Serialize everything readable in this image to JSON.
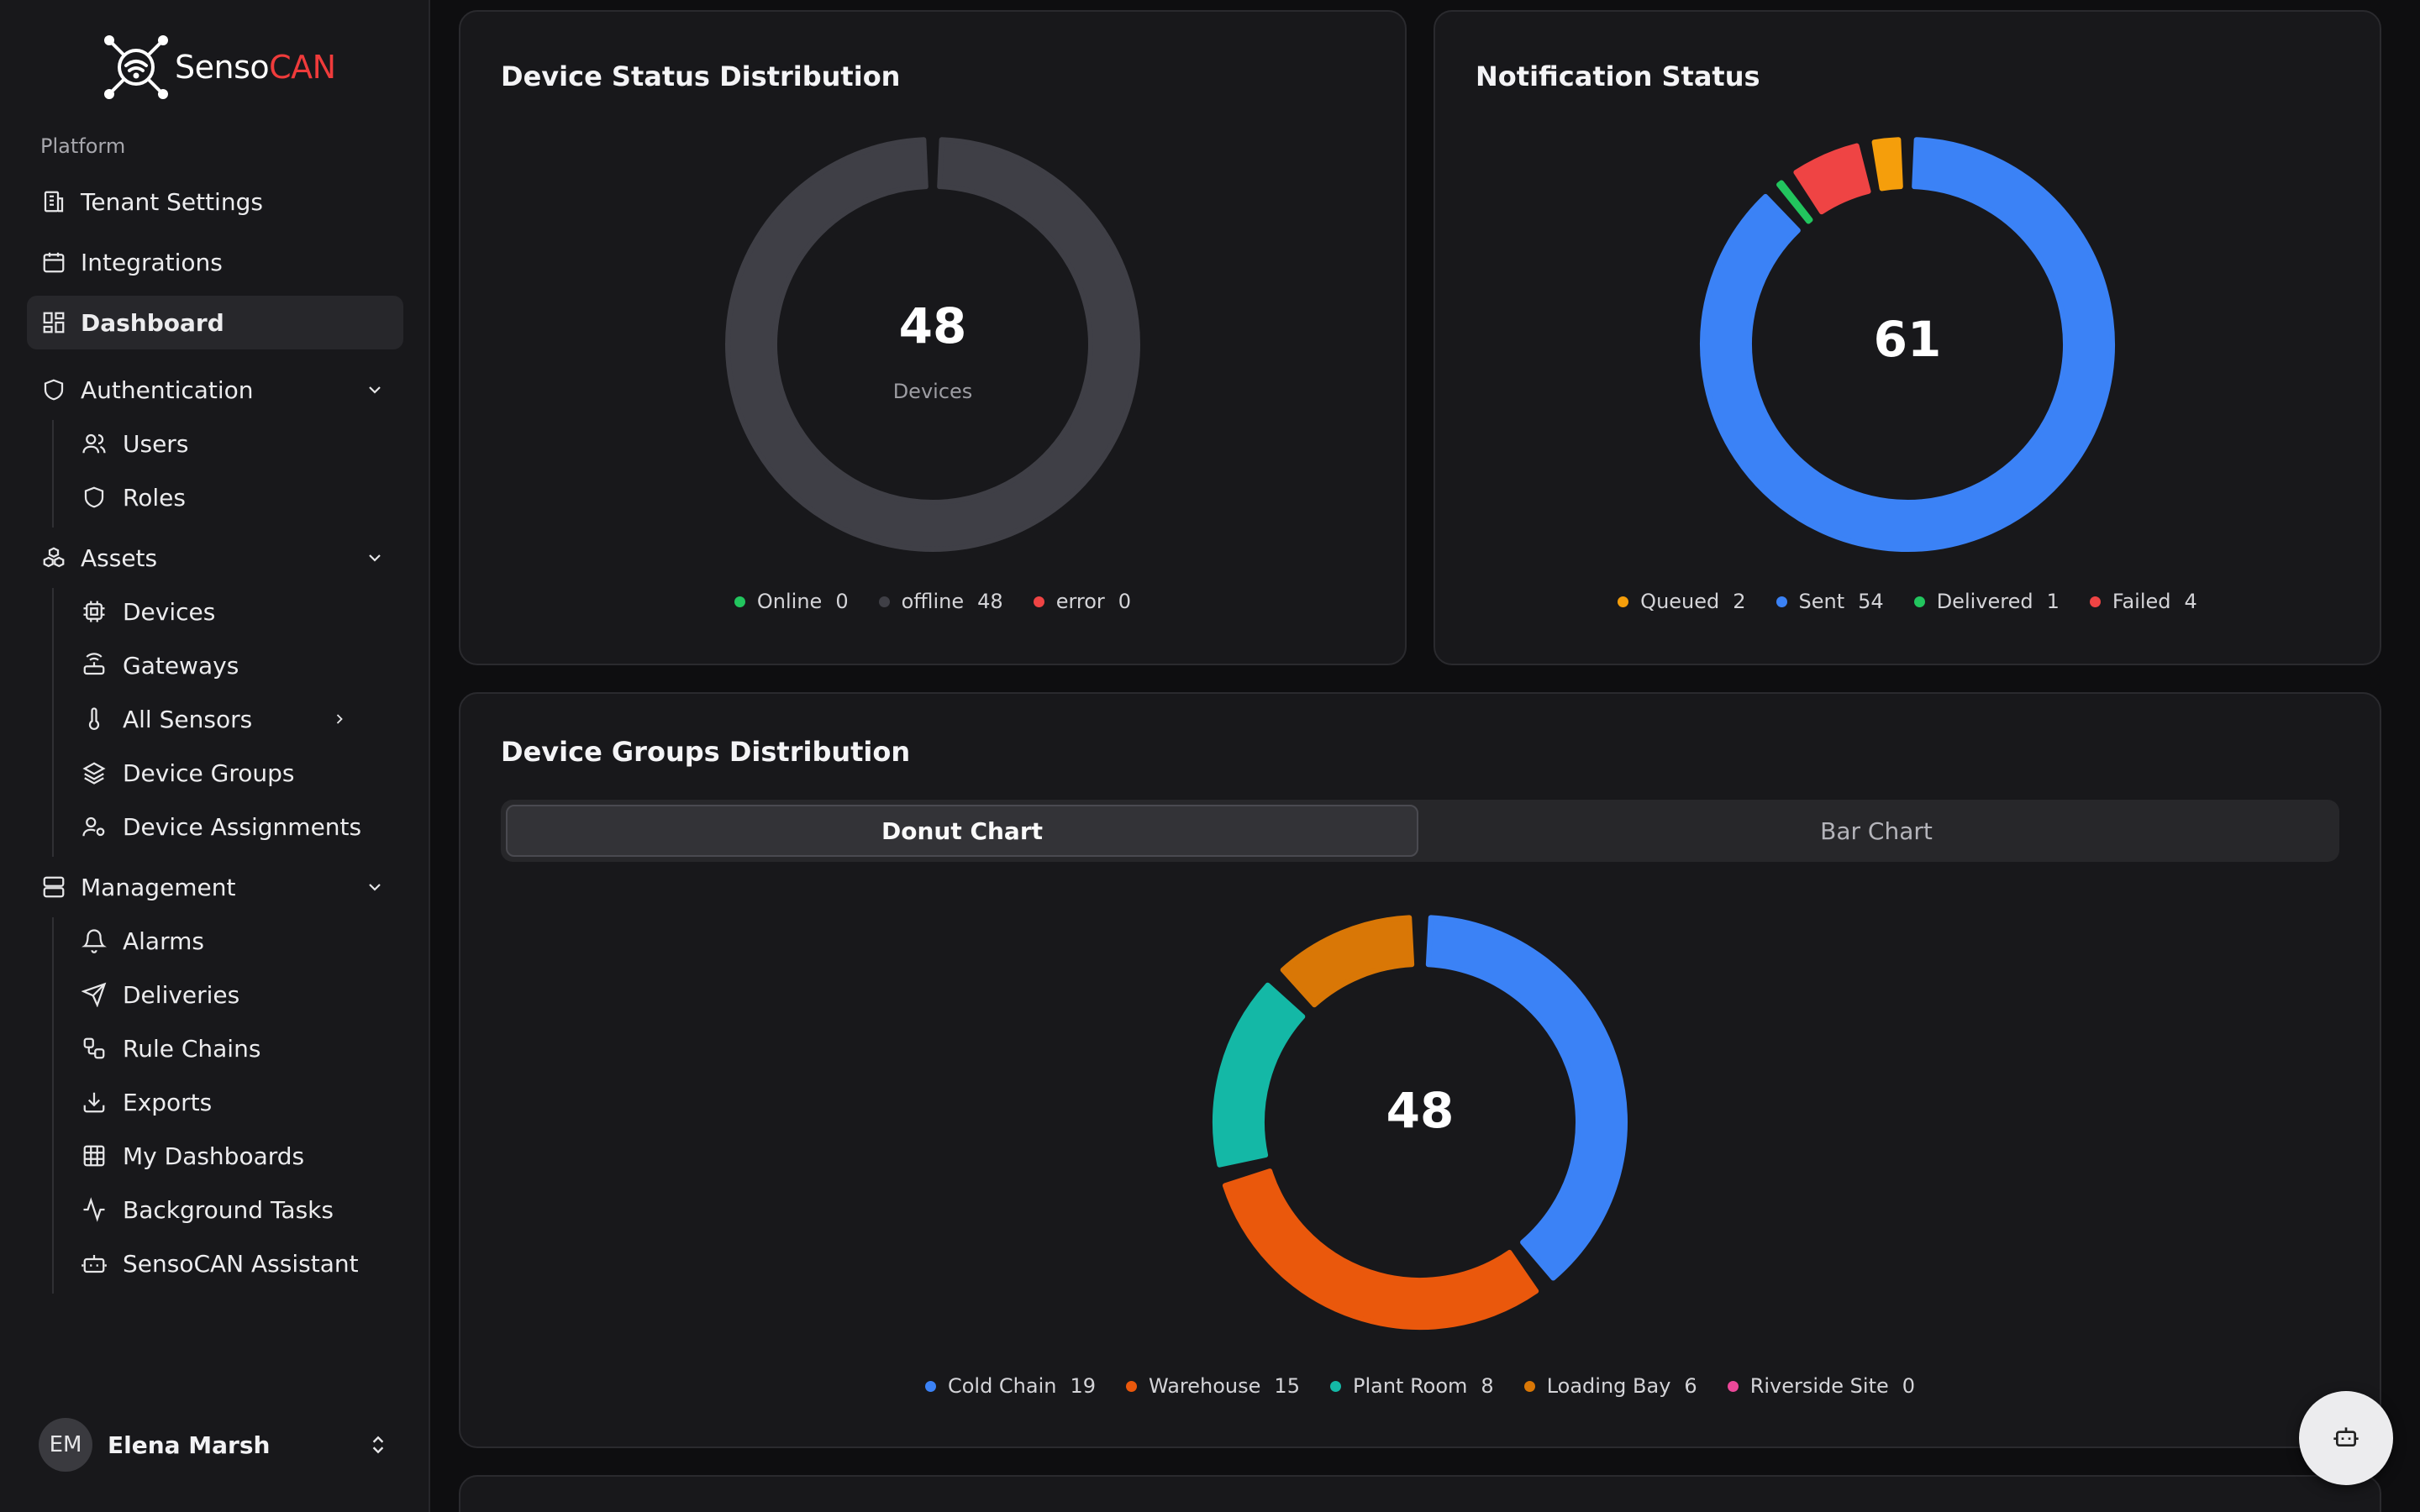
{
  "brand": {
    "name_a": "Senso",
    "name_b": "CAN"
  },
  "sidebar": {
    "section_label": "Platform",
    "top_items": [
      {
        "label": "Tenant Settings",
        "icon": "building-icon"
      },
      {
        "label": "Integrations",
        "icon": "calendar-icon"
      },
      {
        "label": "Dashboard",
        "icon": "dashboard-icon",
        "active": true
      }
    ],
    "authentication": {
      "label": "Authentication",
      "items": [
        "Users",
        "Roles"
      ]
    },
    "assets": {
      "label": "Assets",
      "items": [
        "Devices",
        "Gateways",
        "All Sensors",
        "Device Groups",
        "Device Assignments"
      ]
    },
    "management": {
      "label": "Management",
      "items": [
        "Alarms",
        "Deliveries",
        "Rule Chains",
        "Exports",
        "My Dashboards",
        "Background Tasks",
        "SensoCAN Assistant"
      ]
    }
  },
  "user": {
    "initials": "EM",
    "name": "Elena Marsh"
  },
  "device_status": {
    "title": "Device Status Distribution",
    "total": "48",
    "total_label": "Devices",
    "legend": [
      {
        "name": "Online",
        "value": "0",
        "color": "#22c55e"
      },
      {
        "name": "offline",
        "value": "48",
        "color": "#3f3f46"
      },
      {
        "name": "error",
        "value": "0",
        "color": "#ef4444"
      }
    ]
  },
  "notification_status": {
    "title": "Notification Status",
    "total": "61",
    "legend": [
      {
        "name": "Queued",
        "value": "2",
        "color": "#f59e0b"
      },
      {
        "name": "Sent",
        "value": "54",
        "color": "#3b82f6"
      },
      {
        "name": "Delivered",
        "value": "1",
        "color": "#22c55e"
      },
      {
        "name": "Failed",
        "value": "4",
        "color": "#ef4444"
      }
    ]
  },
  "device_groups": {
    "title": "Device Groups Distribution",
    "tabs": {
      "donut": "Donut Chart",
      "bar": "Bar Chart"
    },
    "total": "48",
    "legend": [
      {
        "name": "Cold Chain",
        "value": "19",
        "color": "#3b82f6"
      },
      {
        "name": "Warehouse",
        "value": "15",
        "color": "#ea580c"
      },
      {
        "name": "Plant Room",
        "value": "8",
        "color": "#14b8a6"
      },
      {
        "name": "Loading Bay",
        "value": "6",
        "color": "#d97706"
      },
      {
        "name": "Riverside Site",
        "value": "0",
        "color": "#ec4899"
      }
    ]
  },
  "chart_data": [
    {
      "type": "pie",
      "title": "Device Status Distribution",
      "categories": [
        "Online",
        "offline",
        "error"
      ],
      "values": [
        0,
        48,
        0
      ]
    },
    {
      "type": "pie",
      "title": "Notification Status",
      "categories": [
        "Queued",
        "Sent",
        "Delivered",
        "Failed"
      ],
      "values": [
        2,
        54,
        1,
        4
      ]
    },
    {
      "type": "pie",
      "title": "Device Groups Distribution",
      "categories": [
        "Cold Chain",
        "Warehouse",
        "Plant Room",
        "Loading Bay",
        "Riverside Site"
      ],
      "values": [
        19,
        15,
        8,
        6,
        0
      ]
    }
  ]
}
